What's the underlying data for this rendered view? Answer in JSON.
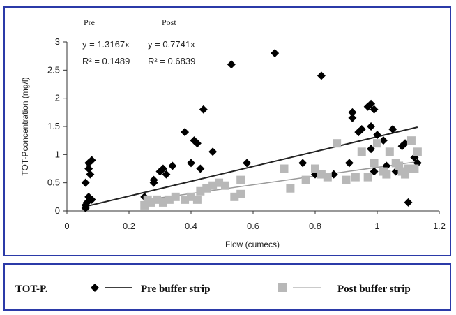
{
  "chart_data": {
    "type": "scatter",
    "xlabel": "Flow (cumecs)",
    "ylabel": "TOT-Pconcentration (mg/l)",
    "xlim": [
      0,
      1.2
    ],
    "ylim": [
      0,
      3
    ],
    "x_ticks": [
      "0",
      "0.2",
      "0.4",
      "0.6",
      "0.8",
      "1",
      "1.2"
    ],
    "y_ticks": [
      "0",
      "0.5",
      "1",
      "1.5",
      "2",
      "2.5",
      "3"
    ],
    "grid": false,
    "legend_placement": "bottom",
    "annotations": {
      "pre_heading": "Pre",
      "post_heading": "Post",
      "pre_equation": "y = 1.3167x",
      "post_equation": "y = 0.7741x",
      "pre_r2": "R² = 0.1489",
      "post_r2": "R² = 0.6839"
    },
    "series": [
      {
        "name": "Pre buffer strip",
        "marker": "diamond",
        "color": "#000000",
        "trend_slope": 1.3167,
        "trend_x": [
          0.06,
          1.13
        ],
        "points": [
          [
            0.06,
            0.05
          ],
          [
            0.06,
            0.1
          ],
          [
            0.065,
            0.15
          ],
          [
            0.07,
            0.25
          ],
          [
            0.06,
            0.5
          ],
          [
            0.07,
            0.75
          ],
          [
            0.07,
            0.85
          ],
          [
            0.08,
            0.9
          ],
          [
            0.075,
            0.65
          ],
          [
            0.08,
            0.2
          ],
          [
            0.25,
            0.25
          ],
          [
            0.28,
            0.5
          ],
          [
            0.28,
            0.55
          ],
          [
            0.3,
            0.7
          ],
          [
            0.31,
            0.75
          ],
          [
            0.32,
            0.65
          ],
          [
            0.34,
            0.8
          ],
          [
            0.38,
            1.4
          ],
          [
            0.4,
            0.85
          ],
          [
            0.41,
            1.25
          ],
          [
            0.42,
            1.2
          ],
          [
            0.43,
            0.75
          ],
          [
            0.44,
            1.8
          ],
          [
            0.47,
            1.05
          ],
          [
            0.53,
            2.6
          ],
          [
            0.58,
            0.85
          ],
          [
            0.67,
            2.8
          ],
          [
            0.76,
            0.85
          ],
          [
            0.8,
            0.65
          ],
          [
            0.82,
            2.4
          ],
          [
            0.86,
            0.65
          ],
          [
            0.91,
            0.85
          ],
          [
            0.92,
            1.65
          ],
          [
            0.92,
            1.75
          ],
          [
            0.94,
            1.4
          ],
          [
            0.95,
            1.45
          ],
          [
            0.97,
            1.85
          ],
          [
            0.98,
            1.9
          ],
          [
            0.99,
            1.8
          ],
          [
            0.98,
            1.5
          ],
          [
            0.98,
            1.1
          ],
          [
            0.99,
            0.7
          ],
          [
            1.0,
            1.35
          ],
          [
            1.02,
            1.25
          ],
          [
            1.03,
            0.8
          ],
          [
            1.05,
            1.45
          ],
          [
            1.06,
            0.7
          ],
          [
            1.08,
            1.15
          ],
          [
            1.09,
            1.2
          ],
          [
            1.1,
            0.15
          ],
          [
            1.12,
            0.95
          ],
          [
            1.13,
            0.85
          ]
        ]
      },
      {
        "name": "Post buffer strip",
        "marker": "square",
        "color": "#b8b8b8",
        "trend_slope": 0.7741,
        "trend_x": [
          0.25,
          1.13
        ],
        "points": [
          [
            0.25,
            0.1
          ],
          [
            0.26,
            0.2
          ],
          [
            0.27,
            0.15
          ],
          [
            0.29,
            0.2
          ],
          [
            0.31,
            0.15
          ],
          [
            0.33,
            0.2
          ],
          [
            0.35,
            0.25
          ],
          [
            0.38,
            0.2
          ],
          [
            0.4,
            0.25
          ],
          [
            0.42,
            0.2
          ],
          [
            0.43,
            0.35
          ],
          [
            0.45,
            0.4
          ],
          [
            0.47,
            0.45
          ],
          [
            0.49,
            0.5
          ],
          [
            0.51,
            0.45
          ],
          [
            0.54,
            0.25
          ],
          [
            0.56,
            0.3
          ],
          [
            0.56,
            0.55
          ],
          [
            0.7,
            0.75
          ],
          [
            0.72,
            0.4
          ],
          [
            0.77,
            0.55
          ],
          [
            0.8,
            0.75
          ],
          [
            0.82,
            0.65
          ],
          [
            0.84,
            0.6
          ],
          [
            0.87,
            1.2
          ],
          [
            0.9,
            0.55
          ],
          [
            0.93,
            0.6
          ],
          [
            0.95,
            1.05
          ],
          [
            0.97,
            0.6
          ],
          [
            0.99,
            0.85
          ],
          [
            1.0,
            1.2
          ],
          [
            1.02,
            0.7
          ],
          [
            1.03,
            0.65
          ],
          [
            1.04,
            1.05
          ],
          [
            1.06,
            0.85
          ],
          [
            1.07,
            0.8
          ],
          [
            1.08,
            0.7
          ],
          [
            1.09,
            0.65
          ],
          [
            1.1,
            0.75
          ],
          [
            1.11,
            1.25
          ],
          [
            1.12,
            0.75
          ],
          [
            1.13,
            1.05
          ]
        ]
      }
    ]
  },
  "legend": {
    "prefix": "TOT-P.",
    "pre_label": "Pre buffer strip",
    "post_label": "Post buffer strip"
  }
}
